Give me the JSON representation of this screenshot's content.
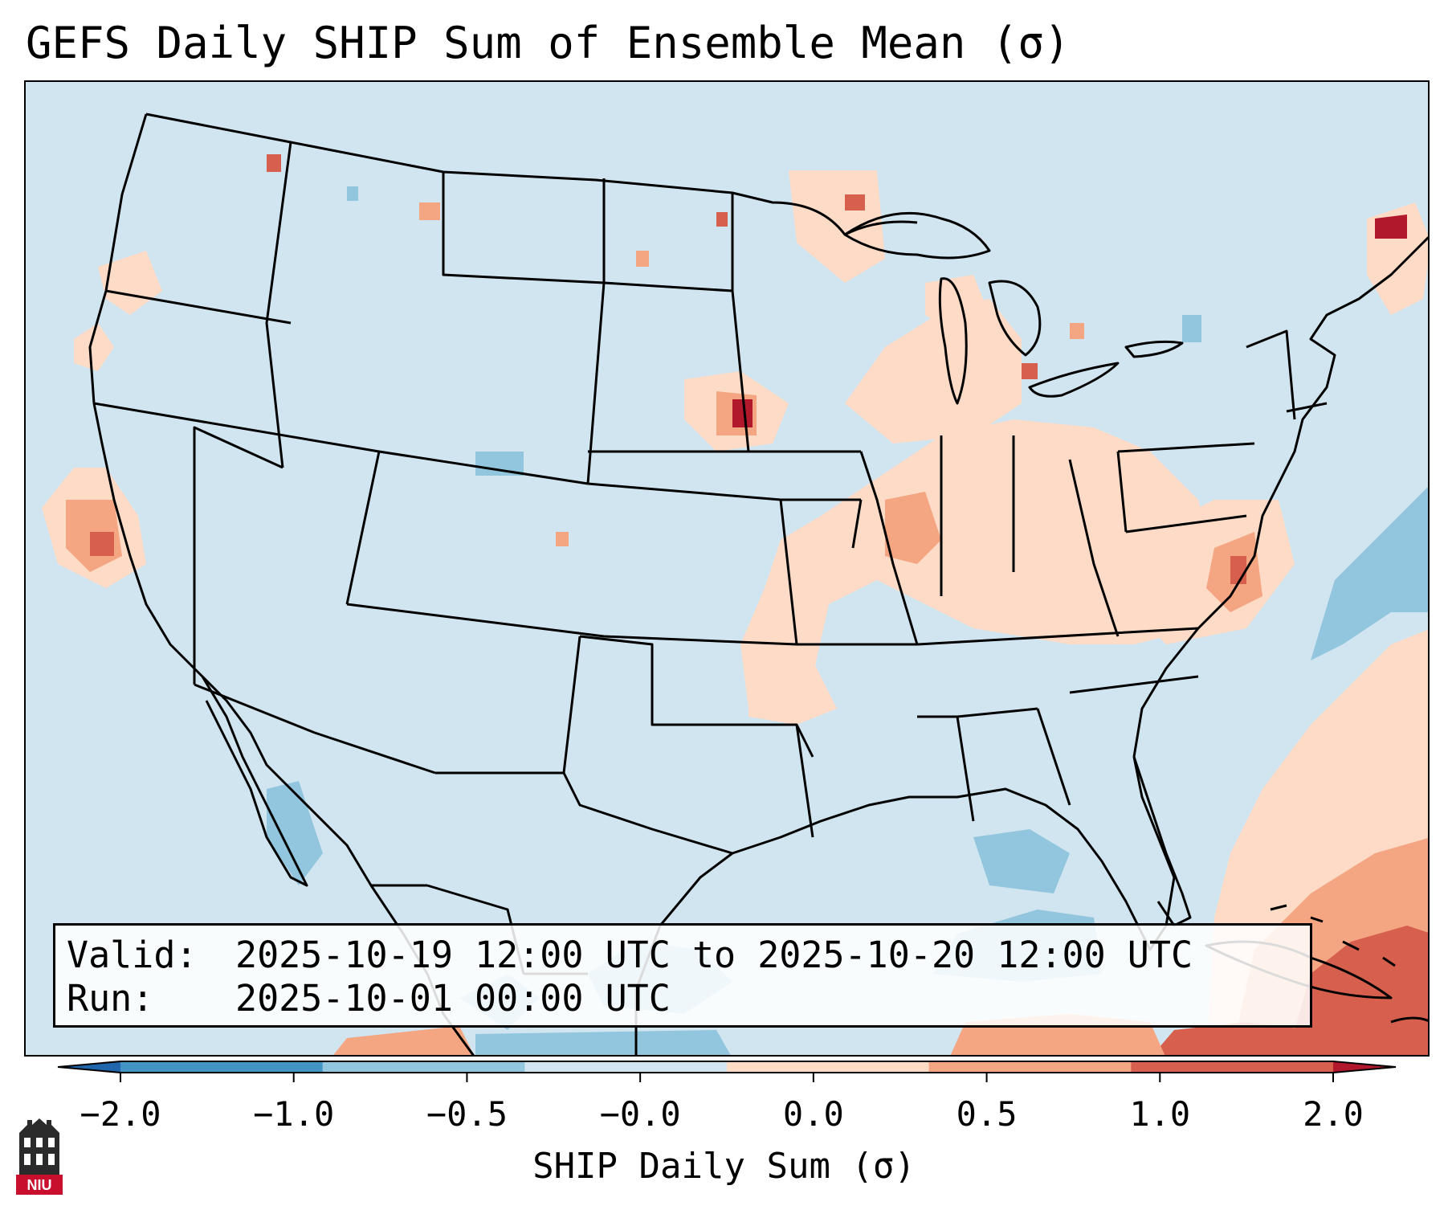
{
  "title": "GEFS Daily SHIP Sum of Ensemble Mean (σ)",
  "info": {
    "valid_label": "Valid:",
    "valid_value": "2025-10-19 12:00 UTC to 2025-10-20 12:00 UTC",
    "run_label": "Run:",
    "run_value": "2025-10-01 00:00 UTC"
  },
  "colorbar": {
    "label": "SHIP Daily Sum (σ)",
    "ticks": [
      "−2.0",
      "−1.0",
      "−0.5",
      "−0.0",
      "0.0",
      "0.5",
      "1.0",
      "2.0"
    ],
    "colors": [
      "#2166ac",
      "#4393c3",
      "#92c5de",
      "#d1e5f0",
      "#fddbc7",
      "#f4a582",
      "#d6604d",
      "#b2182b"
    ],
    "extend": "both"
  },
  "map": {
    "ocean_land_background": "#d1e5f0",
    "region": "Contiguous United States with southern Canada, northern Mexico, Gulf of Mexico and Caribbean"
  },
  "logo": {
    "text": "NIU"
  }
}
